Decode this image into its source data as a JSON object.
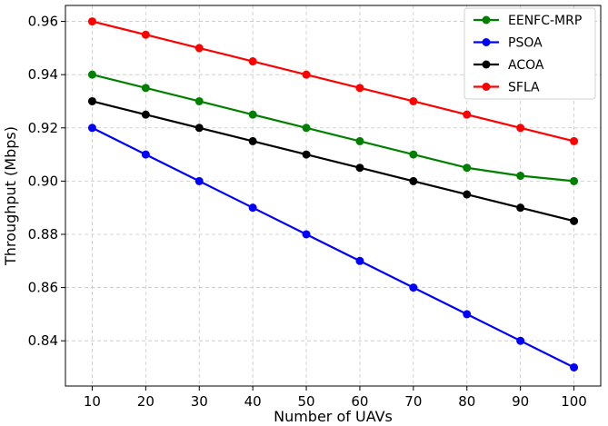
{
  "chart_data": {
    "type": "line",
    "title": "",
    "xlabel": "Number of UAVs",
    "ylabel": "Throughput (Mbps)",
    "x": [
      10,
      20,
      30,
      40,
      50,
      60,
      70,
      80,
      90,
      100
    ],
    "xlim": [
      5,
      105
    ],
    "ylim": [
      0.823,
      0.966
    ],
    "xticks": [
      "10",
      "20",
      "30",
      "40",
      "50",
      "60",
      "70",
      "80",
      "90",
      "100"
    ],
    "yticks": [
      "0.84",
      "0.86",
      "0.88",
      "0.90",
      "0.92",
      "0.94",
      "0.96"
    ],
    "ytick_values": [
      0.84,
      0.86,
      0.88,
      0.9,
      0.92,
      0.94,
      0.96
    ],
    "grid": true,
    "legend_position": "top-right",
    "series": [
      {
        "name": "EENFC-MRP",
        "color": "#008000",
        "values": [
          0.94,
          0.935,
          0.93,
          0.925,
          0.92,
          0.915,
          0.91,
          0.905,
          0.902,
          0.9
        ]
      },
      {
        "name": "PSOA",
        "color": "#0000ff",
        "values": [
          0.92,
          0.91,
          0.9,
          0.89,
          0.88,
          0.87,
          0.86,
          0.85,
          0.84,
          0.83
        ]
      },
      {
        "name": "ACOA",
        "color": "#000000",
        "values": [
          0.93,
          0.925,
          0.92,
          0.915,
          0.91,
          0.905,
          0.9,
          0.895,
          0.89,
          0.885
        ]
      },
      {
        "name": "SFLA",
        "color": "#ff0000",
        "values": [
          0.96,
          0.955,
          0.95,
          0.945,
          0.94,
          0.935,
          0.93,
          0.925,
          0.92,
          0.915
        ]
      }
    ]
  }
}
